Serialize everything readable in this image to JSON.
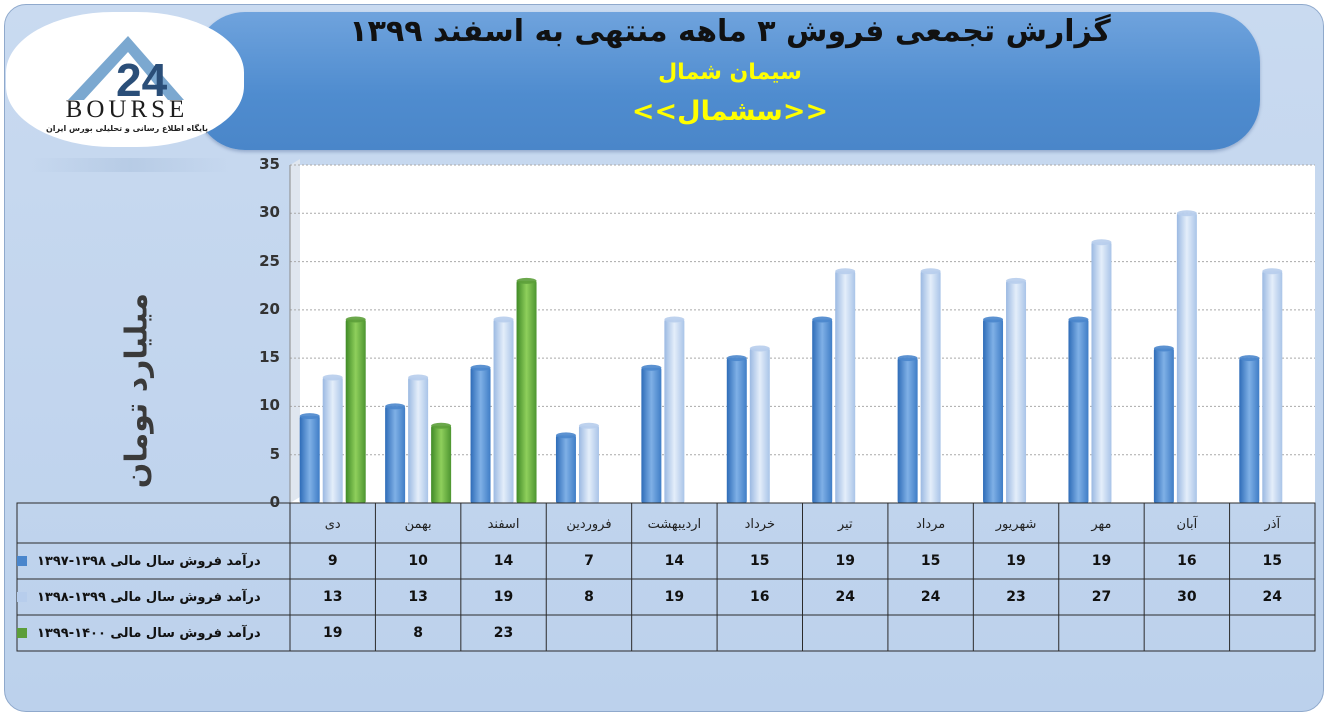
{
  "header": {
    "title": "گزارش تجمعی فروش ۳ ماهه منتهی به اسفند ۱۳۹۹",
    "company": "سیمان شمال",
    "ticker": "<<سشمال>>"
  },
  "logo": {
    "word": "BOURSE",
    "tagline": "پایگاه اطلاع رسانی و تحلیلی بورس ایران"
  },
  "colors": {
    "series1": "#4a86cc",
    "series2": "#b7cdec",
    "series3": "#5c9e3a"
  },
  "chart_data": {
    "type": "bar",
    "ylabel": "میلیارد تومان",
    "ylim": [
      0,
      35
    ],
    "yticks": [
      0,
      5,
      10,
      15,
      20,
      25,
      30,
      35
    ],
    "grid": true,
    "categories": [
      "دی",
      "بهمن",
      "اسفند",
      "فروردین",
      "اردیبهشت",
      "خرداد",
      "تیر",
      "مرداد",
      "شهریور",
      "مهر",
      "آبان",
      "آذر"
    ],
    "series": [
      {
        "name": "درآمد فروش سال مالی ۱۳۹۸-۱۳۹۷",
        "values": [
          9,
          10,
          14,
          7,
          14,
          15,
          19,
          15,
          19,
          19,
          16,
          15
        ]
      },
      {
        "name": "درآمد فروش سال مالی ۱۳۹۹-۱۳۹۸",
        "values": [
          13,
          13,
          19,
          8,
          19,
          16,
          24,
          24,
          23,
          27,
          30,
          24
        ]
      },
      {
        "name": "درآمد فروش سال مالی ۱۴۰۰-۱۳۹۹",
        "values": [
          19,
          8,
          23,
          null,
          null,
          null,
          null,
          null,
          null,
          null,
          null,
          null
        ]
      }
    ]
  }
}
